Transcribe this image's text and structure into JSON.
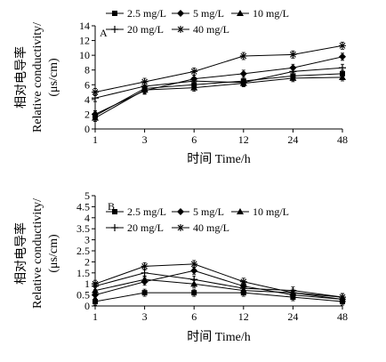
{
  "chart_data": [
    {
      "panel_label": "A",
      "type": "line",
      "x": [
        "1",
        "3",
        "6",
        "12",
        "24",
        "48"
      ],
      "ylim": [
        0,
        14
      ],
      "yticks": [
        0,
        2,
        4,
        6,
        8,
        10,
        12,
        14
      ],
      "ylabel_lines": [
        "相对电导率",
        "Relative conductivity/",
        "(μs/cm)"
      ],
      "xlabel": "时间 Time/h",
      "series": [
        {
          "name": "2.5 mg/L",
          "marker": "square",
          "values": [
            1.8,
            5.5,
            6.0,
            6.5,
            7.2,
            7.5
          ]
        },
        {
          "name": "5 mg/L",
          "marker": "diamond",
          "values": [
            2.0,
            5.2,
            6.8,
            7.5,
            8.3,
            9.8
          ]
        },
        {
          "name": "10 mg/L",
          "marker": "triangle",
          "values": [
            1.5,
            5.3,
            5.6,
            6.2,
            6.9,
            7.0
          ]
        },
        {
          "name": "20 mg/L",
          "marker": "plus",
          "values": [
            4.2,
            5.8,
            6.5,
            6.3,
            7.8,
            8.3
          ]
        },
        {
          "name": "40 mg/L",
          "marker": "star",
          "values": [
            5.0,
            6.4,
            7.8,
            9.9,
            10.1,
            11.3
          ]
        }
      ]
    },
    {
      "panel_label": "B",
      "type": "line",
      "x": [
        "1",
        "3",
        "6",
        "12",
        "24",
        "48"
      ],
      "ylim": [
        0,
        5
      ],
      "yticks": [
        0,
        0.5,
        1,
        1.5,
        2,
        2.5,
        3,
        3.5,
        4,
        4.5,
        5
      ],
      "ylabel_lines": [
        "相对电导率",
        "Relative conductivity/",
        "(μs/cm)"
      ],
      "xlabel": "时间 Time/h",
      "series": [
        {
          "name": "2.5 mg/L",
          "marker": "square",
          "values": [
            0.2,
            0.6,
            0.6,
            0.6,
            0.4,
            0.2
          ]
        },
        {
          "name": "5 mg/L",
          "marker": "diamond",
          "values": [
            0.5,
            1.1,
            1.6,
            0.9,
            0.5,
            0.3
          ]
        },
        {
          "name": "10 mg/L",
          "marker": "triangle",
          "values": [
            0.7,
            1.2,
            1.0,
            0.7,
            0.6,
            0.3
          ]
        },
        {
          "name": "20 mg/L",
          "marker": "plus",
          "values": [
            0.9,
            1.5,
            1.2,
            0.8,
            0.7,
            0.4
          ]
        },
        {
          "name": "40 mg/L",
          "marker": "star",
          "values": [
            1.0,
            1.8,
            1.9,
            1.1,
            0.6,
            0.4
          ]
        }
      ]
    }
  ]
}
